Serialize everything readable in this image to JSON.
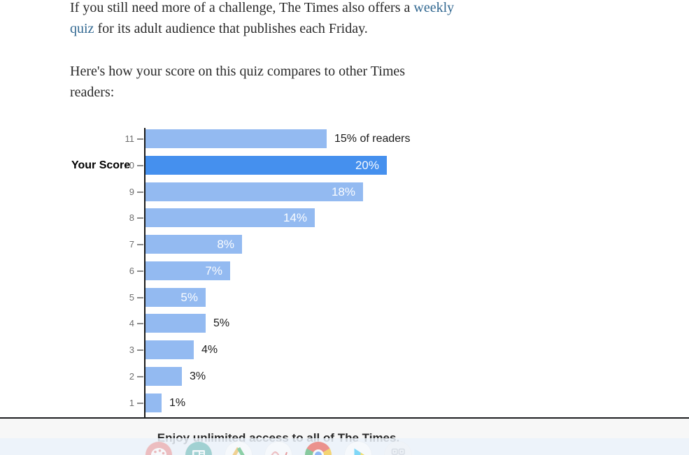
{
  "article": {
    "paragraph1_pre": "If you still need more of a challenge, The Times also offers a ",
    "paragraph1_link_text": "weekly\nquiz",
    "paragraph1_post": " for its adult audience that publishes each Friday.",
    "paragraph2": "Here's how your score on this quiz compares to other Times\nreaders:"
  },
  "chart_data": {
    "type": "bar",
    "orientation": "horizontal",
    "title": "",
    "xlabel": "",
    "ylabel": "",
    "x_unit": "percent of readers",
    "categories": [
      11,
      10,
      9,
      8,
      7,
      6,
      5,
      4,
      3,
      2,
      1
    ],
    "values": [
      15,
      20,
      18,
      14,
      8,
      7,
      5,
      5,
      4,
      3,
      1
    ],
    "labels": [
      "15% of readers",
      "20%",
      "18%",
      "14%",
      "8%",
      "7%",
      "5%",
      "5%",
      "4%",
      "3%",
      "1%"
    ],
    "label_placement": [
      "outside",
      "inside",
      "inside",
      "inside",
      "inside",
      "inside",
      "inside",
      "outside",
      "outside",
      "outside",
      "outside"
    ],
    "highlight_category": 10,
    "annotation": "Your Score",
    "axis_range_pct": [
      0,
      20
    ],
    "grid": false,
    "legend": "none",
    "colors": {
      "bar": "#93BAF1",
      "bar_highlight": "#4590EE",
      "axis": "#1A1A1A",
      "tick_label": "#6E6E6E",
      "label_inside": "#FFFFFF",
      "label_outside": "#1A1A1A"
    }
  },
  "banner": {
    "headline": "Enjoy unlimited access to all of The Times.",
    "app_icons": [
      "palette",
      "newspaper",
      "google-drive",
      "squiggle-chart",
      "chrome",
      "google-play",
      "app-grid"
    ]
  }
}
